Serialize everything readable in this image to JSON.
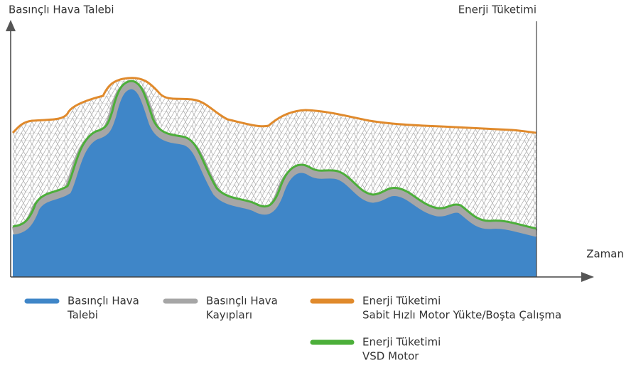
{
  "axes": {
    "y_left_label": "Basınçlı Hava Talebi",
    "y_right_label": "Enerji Tüketimi",
    "x_label": "Zaman"
  },
  "legend": [
    {
      "lines": [
        "Basınçlı Hava",
        "Talebi"
      ],
      "color": "#3f86c8"
    },
    {
      "lines": [
        "Basınçlı Hava",
        "Kayıpları"
      ],
      "color": "#a6a6a6"
    },
    {
      "lines": [
        "Enerji Tüketimi",
        "Sabit Hızlı Motor Yükte/Boşta Çalışma"
      ],
      "color": "#e08a2c"
    },
    {
      "lines": [
        "Enerji Tüketimi",
        "VSD Motor"
      ],
      "color": "#4caf3a"
    }
  ]
}
